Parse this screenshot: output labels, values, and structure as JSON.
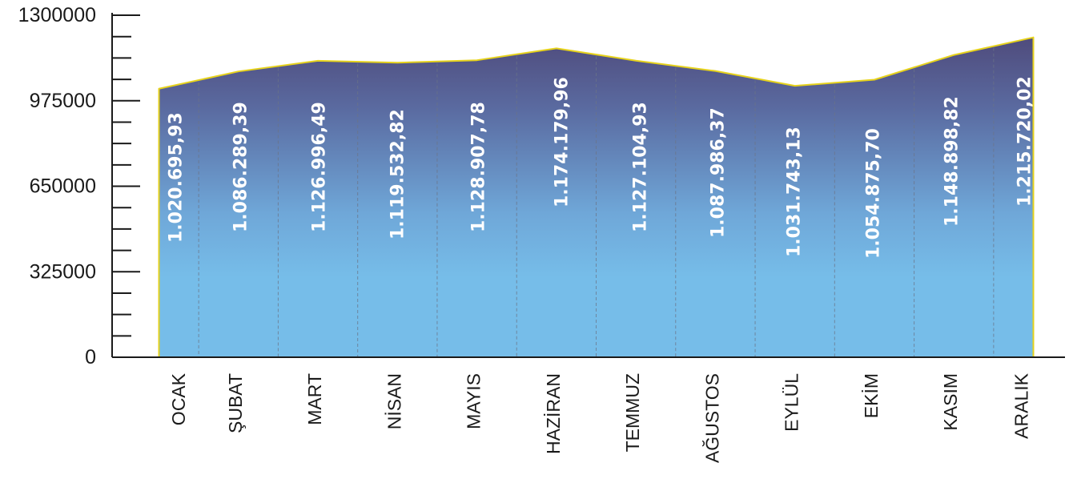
{
  "chart_data": {
    "type": "area",
    "title": "",
    "xlabel": "",
    "ylabel": "",
    "categories": [
      "OCAK",
      "ŞUBAT",
      "MART",
      "NİSAN",
      "MAYIS",
      "HAZİRAN",
      "TEMMUZ",
      "AĞUSTOS",
      "EYLÜL",
      "EKİM",
      "KASIM",
      "ARALIK"
    ],
    "series": [
      {
        "values": [
          1020695.93,
          1086289.39,
          1126996.49,
          1119532.82,
          1128907.78,
          1174179.96,
          1127104.93,
          1087986.37,
          1031743.13,
          1054875.7,
          1148898.82,
          1215720.02
        ],
        "value_labels": [
          "1.020.695,93",
          "1.086.289,39",
          "1.126.996,49",
          "1.119.532,82",
          "1.128.907,78",
          "1.174.179,96",
          "1.127.104,93",
          "1.087.986,37",
          "1.031.743,13",
          "1.054.875,70",
          "1.148.898,82",
          "1.215.720,02"
        ]
      }
    ],
    "ylim": [
      0,
      1300000
    ],
    "yticks": [
      0,
      325000,
      650000,
      975000,
      1300000
    ],
    "ytick_labels": [
      "0",
      "325000",
      "650000",
      "975000",
      "1300000"
    ],
    "grid": false,
    "legend": "none",
    "colors": {
      "area_top": "#4f4b7c",
      "area_bottom": "#76bde9",
      "outline": "#e6d21c",
      "axis": "#1a1a1a",
      "separator": "#6b7487",
      "value_text": "#ffffff"
    }
  }
}
